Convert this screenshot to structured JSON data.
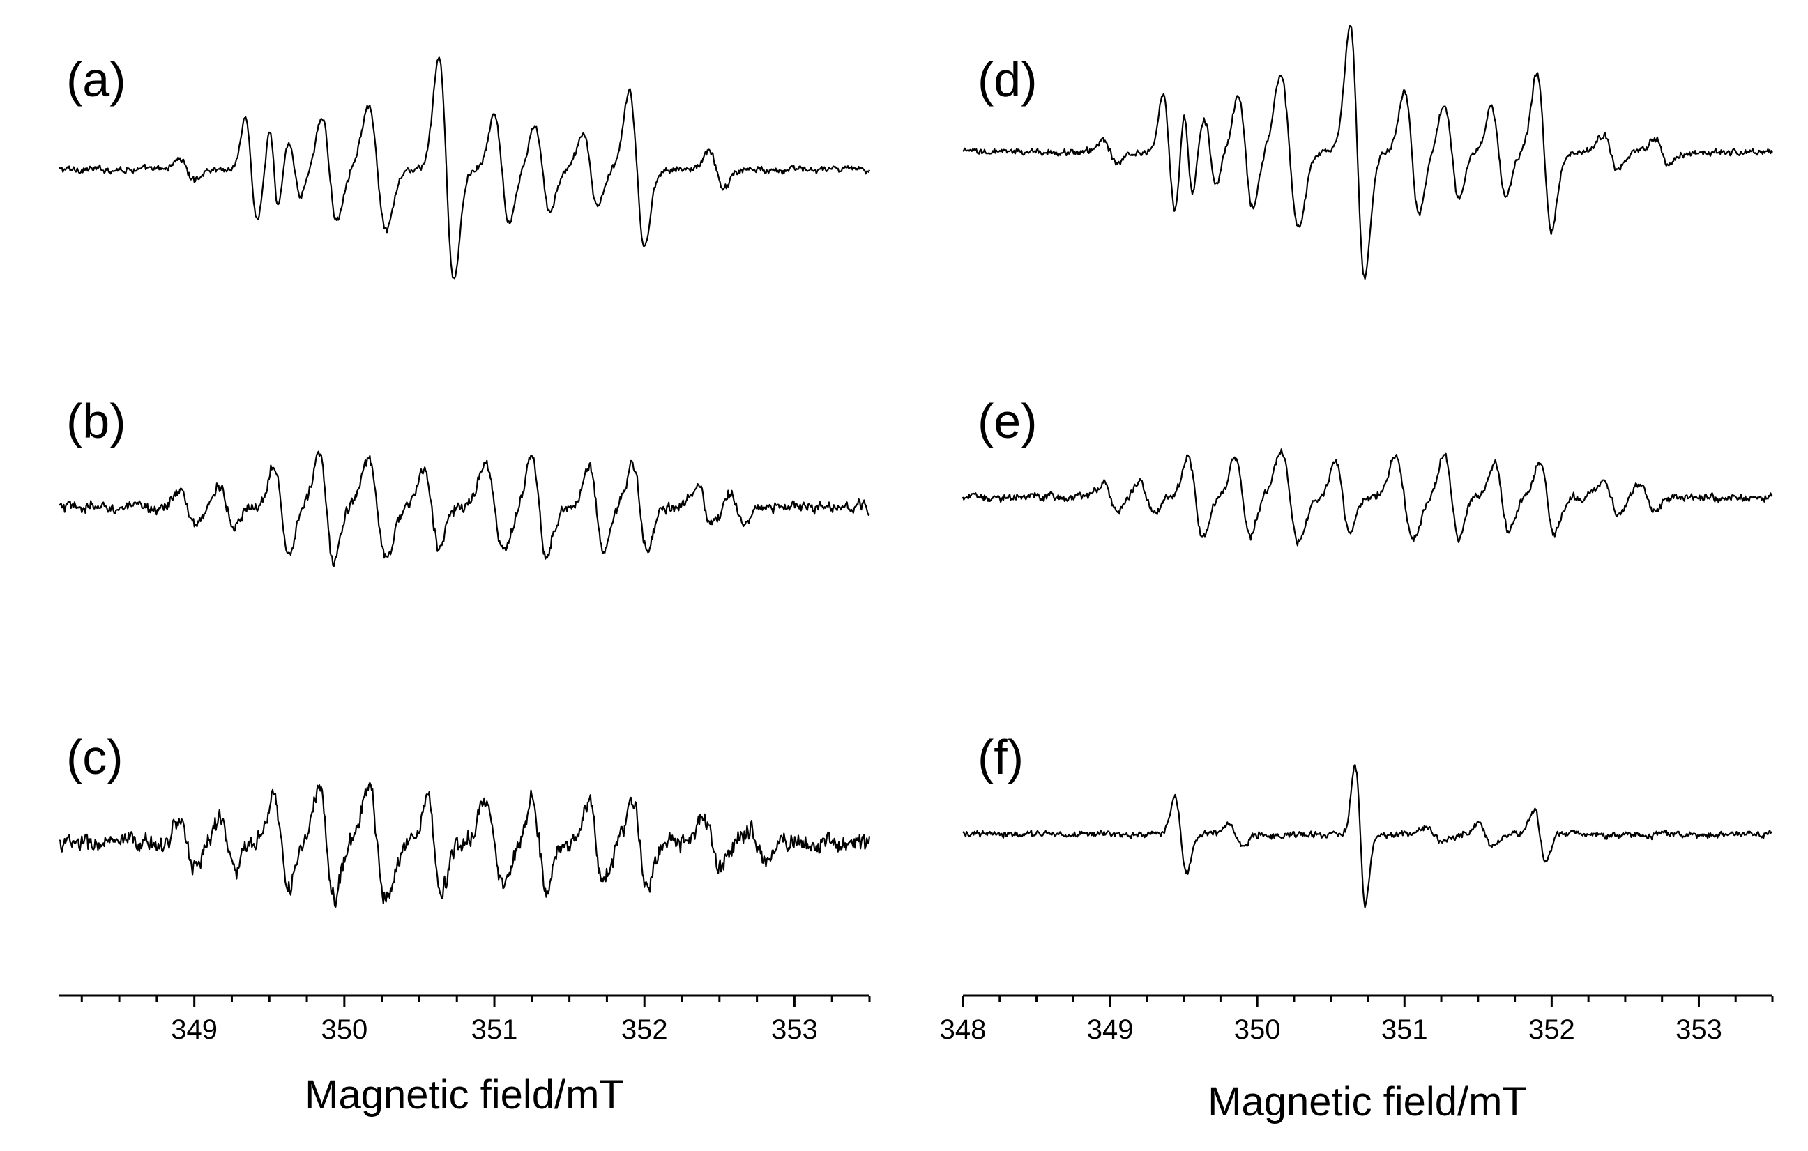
{
  "chart_data": [
    {
      "type": "line",
      "id": "left",
      "xlabel": "Magnetic field/mT",
      "xlim": [
        348.1,
        353.5
      ],
      "xticks": [
        349,
        350,
        351,
        352,
        353
      ],
      "panels": [
        {
          "label": "(a)",
          "noise": 1.5,
          "lines": [
            {
              "pos": 348.95,
              "amp": 0.6,
              "w": 0.05
            },
            {
              "pos": 349.38,
              "amp": 2.8,
              "w": 0.04
            },
            {
              "pos": 349.53,
              "amp": 2.2,
              "w": 0.03
            },
            {
              "pos": 349.67,
              "amp": 1.5,
              "w": 0.04
            },
            {
              "pos": 349.9,
              "amp": 2.8,
              "w": 0.05
            },
            {
              "pos": 350.22,
              "amp": 3.4,
              "w": 0.06
            },
            {
              "pos": 350.68,
              "amp": 6.2,
              "w": 0.05
            },
            {
              "pos": 351.05,
              "amp": 3.0,
              "w": 0.05
            },
            {
              "pos": 351.32,
              "amp": 2.4,
              "w": 0.05
            },
            {
              "pos": 351.64,
              "amp": 2.0,
              "w": 0.05
            },
            {
              "pos": 351.95,
              "amp": 4.3,
              "w": 0.05
            },
            {
              "pos": 352.48,
              "amp": 1.0,
              "w": 0.05
            }
          ]
        },
        {
          "label": "(b)",
          "noise": 2.6,
          "lines": [
            {
              "pos": 348.95,
              "amp": 1.0,
              "w": 0.05
            },
            {
              "pos": 349.22,
              "amp": 1.2,
              "w": 0.05
            },
            {
              "pos": 349.58,
              "amp": 2.5,
              "w": 0.05
            },
            {
              "pos": 349.88,
              "amp": 3.0,
              "w": 0.05
            },
            {
              "pos": 350.22,
              "amp": 2.7,
              "w": 0.06
            },
            {
              "pos": 350.58,
              "amp": 2.2,
              "w": 0.05
            },
            {
              "pos": 351.0,
              "amp": 2.5,
              "w": 0.06
            },
            {
              "pos": 351.3,
              "amp": 2.8,
              "w": 0.05
            },
            {
              "pos": 351.68,
              "amp": 2.3,
              "w": 0.05
            },
            {
              "pos": 351.97,
              "amp": 2.4,
              "w": 0.05
            },
            {
              "pos": 352.4,
              "amp": 1.2,
              "w": 0.05
            },
            {
              "pos": 352.62,
              "amp": 0.8,
              "w": 0.05
            }
          ]
        },
        {
          "label": "(c)",
          "noise": 4.2,
          "lines": [
            {
              "pos": 348.95,
              "amp": 1.3,
              "w": 0.05
            },
            {
              "pos": 349.22,
              "amp": 1.5,
              "w": 0.05
            },
            {
              "pos": 349.58,
              "amp": 2.5,
              "w": 0.05
            },
            {
              "pos": 349.88,
              "amp": 3.1,
              "w": 0.05
            },
            {
              "pos": 350.22,
              "amp": 3.1,
              "w": 0.06
            },
            {
              "pos": 350.6,
              "amp": 2.6,
              "w": 0.05
            },
            {
              "pos": 351.0,
              "amp": 2.3,
              "w": 0.06
            },
            {
              "pos": 351.3,
              "amp": 2.5,
              "w": 0.05
            },
            {
              "pos": 351.68,
              "amp": 2.3,
              "w": 0.05
            },
            {
              "pos": 351.97,
              "amp": 2.4,
              "w": 0.05
            },
            {
              "pos": 352.45,
              "amp": 1.4,
              "w": 0.05
            },
            {
              "pos": 352.75,
              "amp": 0.9,
              "w": 0.05
            }
          ]
        }
      ]
    },
    {
      "type": "line",
      "id": "right",
      "xlabel": "Magnetic field/mT",
      "xlim": [
        348.0,
        353.5
      ],
      "xticks": [
        348,
        349,
        350,
        351,
        352,
        353
      ],
      "panels": [
        {
          "label": "(d)",
          "noise": 1.5,
          "lines": [
            {
              "pos": 349.0,
              "amp": 0.7,
              "w": 0.05
            },
            {
              "pos": 349.4,
              "amp": 3.2,
              "w": 0.04
            },
            {
              "pos": 349.53,
              "amp": 2.4,
              "w": 0.03
            },
            {
              "pos": 349.68,
              "amp": 1.8,
              "w": 0.04
            },
            {
              "pos": 349.92,
              "amp": 3.0,
              "w": 0.05
            },
            {
              "pos": 350.22,
              "amp": 4.2,
              "w": 0.06
            },
            {
              "pos": 350.68,
              "amp": 7.0,
              "w": 0.05
            },
            {
              "pos": 351.05,
              "amp": 3.4,
              "w": 0.05
            },
            {
              "pos": 351.32,
              "amp": 2.6,
              "w": 0.05
            },
            {
              "pos": 351.64,
              "amp": 2.4,
              "w": 0.05
            },
            {
              "pos": 351.95,
              "amp": 4.4,
              "w": 0.05
            },
            {
              "pos": 352.4,
              "amp": 1.0,
              "w": 0.05
            },
            {
              "pos": 352.75,
              "amp": 0.7,
              "w": 0.05
            }
          ]
        },
        {
          "label": "(e)",
          "noise": 1.8,
          "lines": [
            {
              "pos": 349.0,
              "amp": 0.7,
              "w": 0.05
            },
            {
              "pos": 349.25,
              "amp": 0.9,
              "w": 0.05
            },
            {
              "pos": 349.58,
              "amp": 2.2,
              "w": 0.05
            },
            {
              "pos": 349.9,
              "amp": 2.2,
              "w": 0.05
            },
            {
              "pos": 350.22,
              "amp": 2.5,
              "w": 0.06
            },
            {
              "pos": 350.58,
              "amp": 1.9,
              "w": 0.05
            },
            {
              "pos": 351.0,
              "amp": 2.2,
              "w": 0.06
            },
            {
              "pos": 351.32,
              "amp": 2.3,
              "w": 0.05
            },
            {
              "pos": 351.66,
              "amp": 2.0,
              "w": 0.05
            },
            {
              "pos": 351.97,
              "amp": 2.0,
              "w": 0.05
            },
            {
              "pos": 352.4,
              "amp": 1.0,
              "w": 0.05
            },
            {
              "pos": 352.65,
              "amp": 0.7,
              "w": 0.05
            }
          ]
        },
        {
          "label": "(f)",
          "noise": 1.5,
          "lines": [
            {
              "pos": 349.48,
              "amp": 2.2,
              "w": 0.04
            },
            {
              "pos": 349.85,
              "amp": 0.5,
              "w": 0.05
            },
            {
              "pos": 350.7,
              "amp": 3.8,
              "w": 0.035
            },
            {
              "pos": 351.2,
              "amp": 0.4,
              "w": 0.05
            },
            {
              "pos": 351.55,
              "amp": 0.6,
              "w": 0.05
            },
            {
              "pos": 351.92,
              "amp": 1.4,
              "w": 0.04
            }
          ]
        }
      ]
    }
  ]
}
